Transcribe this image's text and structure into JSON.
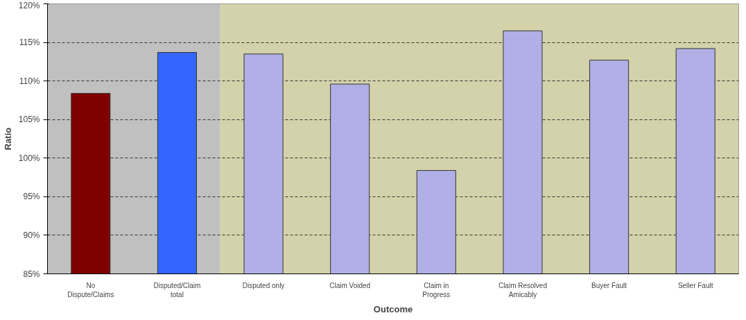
{
  "chart_data": {
    "type": "bar",
    "xlabel": "Outcome",
    "ylabel": "Ratio",
    "categories": [
      "No\nDispute/Claims",
      "Disputed/Claim\ntotal",
      "Disputed only",
      "Claim Voided",
      "Claim in\nProgress",
      "Claim Resolved\nAmicably",
      "Buyer Fault",
      "Seller Fault"
    ],
    "values": [
      108.4,
      113.7,
      113.5,
      109.6,
      98.4,
      116.5,
      112.7,
      114.2
    ],
    "colors": [
      "#800000",
      "#3366ff",
      "#b0b0e6",
      "#b0b0e6",
      "#b0b0e6",
      "#b0b0e6",
      "#b0b0e6",
      "#b0b0e6"
    ],
    "ylim": [
      85,
      120
    ],
    "yticks": [
      {
        "value": 85,
        "label": "85%"
      },
      {
        "value": 90,
        "label": "90%"
      },
      {
        "value": 95,
        "label": "95%"
      },
      {
        "value": 100,
        "label": "100%"
      },
      {
        "value": 105,
        "label": "105%"
      },
      {
        "value": 110,
        "label": "110%"
      },
      {
        "value": 115,
        "label": "115%"
      },
      {
        "value": 120,
        "label": "120%"
      }
    ],
    "grid": "y",
    "line_style": "dashed",
    "bands": [
      {
        "axis": "x",
        "from": "No\nDispute/Claims",
        "to": "Disputed/Claim\ntotal",
        "color": "#c0c0c0"
      },
      {
        "axis": "x",
        "from": "Disputed only",
        "to": "Seller Fault",
        "color": "#d4d2aa"
      }
    ]
  }
}
